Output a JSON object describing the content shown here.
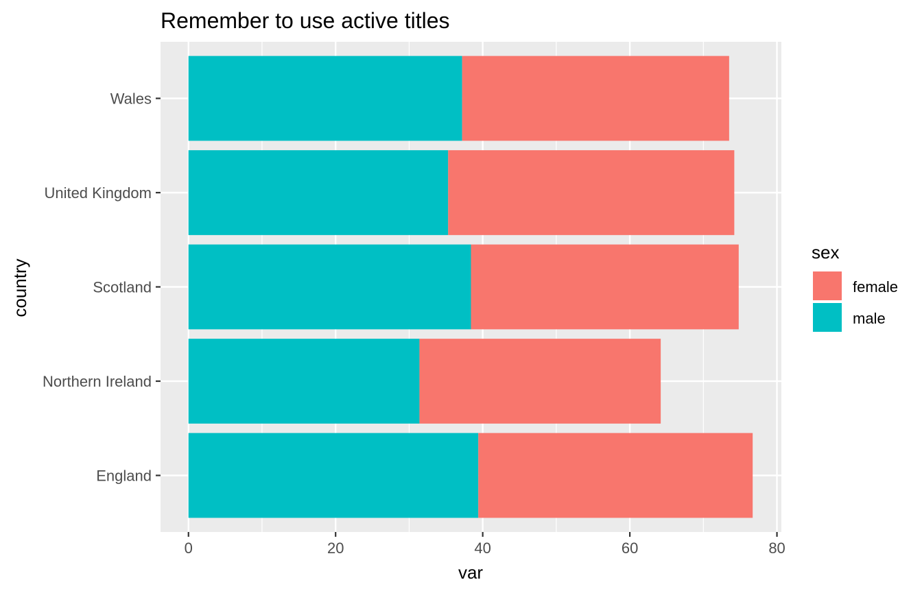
{
  "chart_data": {
    "type": "bar",
    "orientation": "horizontal",
    "stacked": true,
    "title": "Remember to use active titles",
    "xlabel": "var",
    "ylabel": "country",
    "categories": [
      "England",
      "Northern Ireland",
      "Scotland",
      "United Kingdom",
      "Wales"
    ],
    "series": [
      {
        "name": "male",
        "color": "#00BFC4",
        "values": [
          39.4,
          31.4,
          38.4,
          35.3,
          37.2
        ]
      },
      {
        "name": "female",
        "color": "#F8766D",
        "values": [
          37.3,
          32.8,
          36.4,
          38.9,
          36.3
        ]
      }
    ],
    "xlim": [
      -3.8,
      80.6
    ],
    "x_ticks": [
      0,
      20,
      40,
      60,
      80
    ],
    "x_tick_labels": [
      "0",
      "20",
      "40",
      "60",
      "80"
    ],
    "grid": true,
    "legend": {
      "title": "sex",
      "position": "right",
      "entries": [
        {
          "label": "female",
          "color": "#F8766D"
        },
        {
          "label": "male",
          "color": "#00BFC4"
        }
      ]
    },
    "panel_background": "#EBEBEB",
    "grid_color": "#FFFFFF"
  }
}
